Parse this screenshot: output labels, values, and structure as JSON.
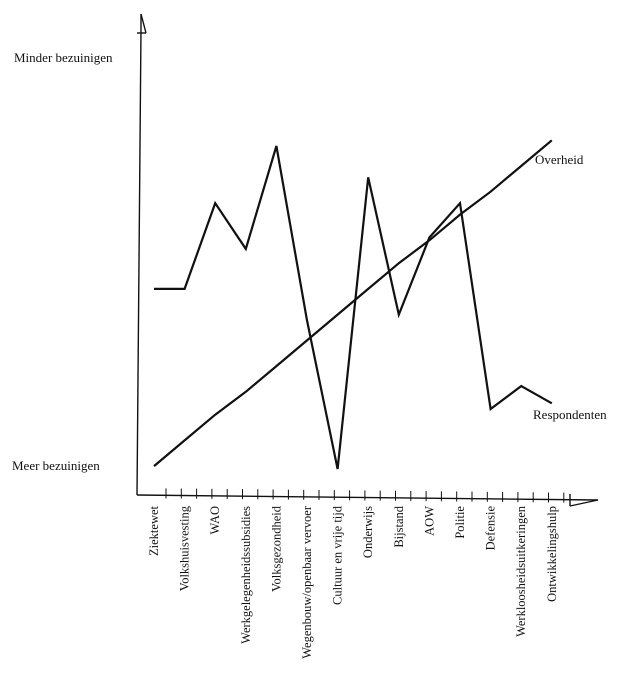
{
  "chart_data": {
    "type": "line",
    "categories": [
      "Ziektewet",
      "Volkshuisvesting",
      "WAO",
      "Werkgelegenheidssubsidies",
      "Volksgezondheid",
      "Wegenbouw/openbaar vervoer",
      "Cultuur en vrije tijd",
      "Onderwijs",
      "Bijstand",
      "AOW",
      "Politie",
      "Defensie",
      "Werkloosheidsuitkeringen",
      "Ontwikkelingshulp"
    ],
    "series": [
      {
        "name": "Respondenten",
        "values": [
          4.8,
          4.8,
          7.8,
          6.2,
          9.8,
          3.7,
          -1.5,
          8.7,
          3.9,
          6.6,
          7.8,
          0.6,
          1.4,
          0.8
        ]
      },
      {
        "name": "Overheid",
        "values": [
          -1.4,
          -0.5,
          0.4,
          1.2,
          2.1,
          3.0,
          3.9,
          4.8,
          5.7,
          6.5,
          7.4,
          8.2,
          9.1,
          10.0
        ]
      }
    ],
    "ylabel_top": "Minder bezuinigen",
    "ylabel_bottom": "Meer bezuinigen",
    "ylim": [
      -2,
      13
    ],
    "grid": false
  }
}
